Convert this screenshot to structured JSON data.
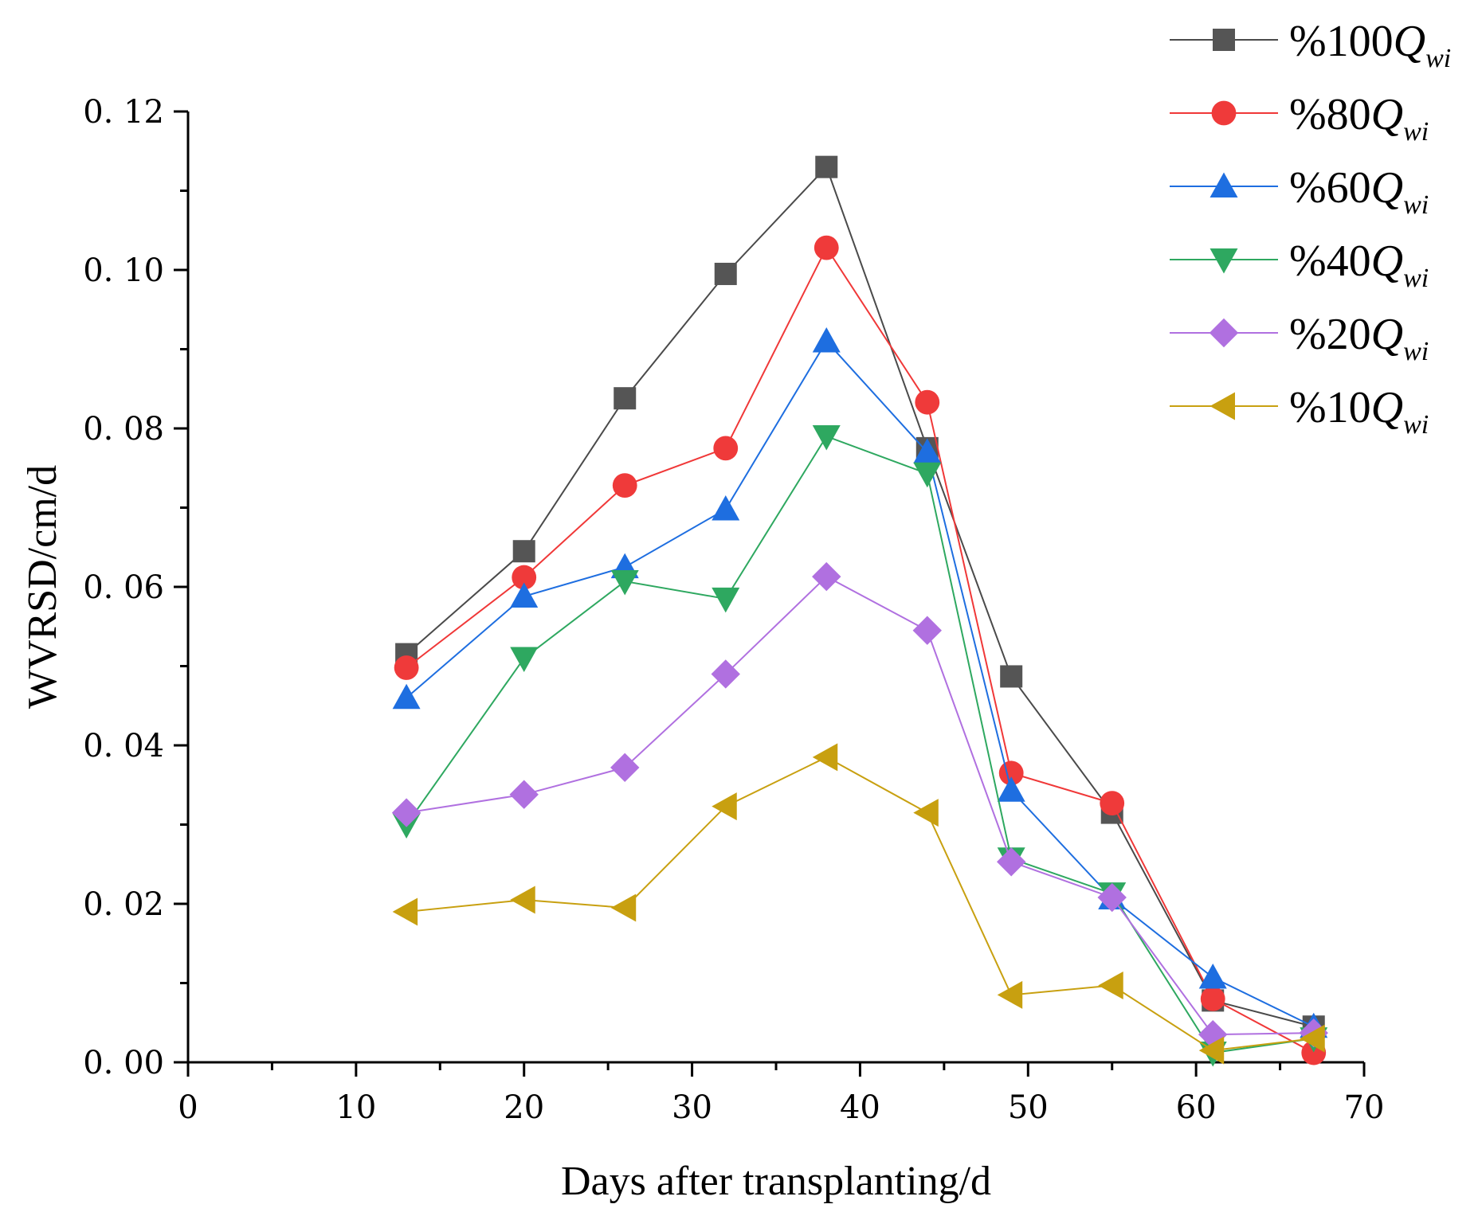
{
  "chart_data": {
    "type": "line",
    "title": "",
    "xlabel": "Days after transplanting/d",
    "ylabel": "WVRSD/cm/d",
    "xlim": [
      0,
      70
    ],
    "ylim": [
      0,
      0.12
    ],
    "x_ticks": [
      0,
      10,
      20,
      30,
      40,
      50,
      60,
      70
    ],
    "x_tick_labels": [
      "0",
      "10",
      "20",
      "30",
      "40",
      "50",
      "60",
      "70"
    ],
    "y_ticks": [
      0,
      0.02,
      0.04,
      0.06,
      0.08,
      0.1,
      0.12
    ],
    "y_tick_labels": [
      "0. 00",
      "0. 02",
      "0. 04",
      "0. 06",
      "0. 08",
      "0. 10",
      "0. 12"
    ],
    "grid": false,
    "legend_position": "top-right",
    "x": [
      13,
      20,
      26,
      32,
      38,
      44,
      49,
      55,
      61,
      67
    ],
    "series": [
      {
        "name": "%100Q_wi",
        "label_prefix": "%100",
        "label_q": "Q",
        "label_sub": "wi",
        "color": "#4a4a4a",
        "marker_fill": "#555555",
        "marker": "square",
        "values": [
          0.0515,
          0.0645,
          0.0838,
          0.0995,
          0.113,
          0.0775,
          0.0487,
          0.0315,
          0.0078,
          0.0045
        ]
      },
      {
        "name": "%80Q_wi",
        "label_prefix": "%80",
        "label_q": "Q",
        "label_sub": "wi",
        "color": "#f03838",
        "marker_fill": "#ef3a3a",
        "marker": "circle",
        "values": [
          0.0498,
          0.0612,
          0.0728,
          0.0775,
          0.1028,
          0.0833,
          0.0365,
          0.0327,
          0.008,
          0.0012
        ]
      },
      {
        "name": "%60Q_wi",
        "label_prefix": "%60",
        "label_q": "Q",
        "label_sub": "wi",
        "color": "#1e6ee0",
        "marker_fill": "#1e6ee0",
        "marker": "triangle-up",
        "values": [
          0.046,
          0.0588,
          0.0625,
          0.0698,
          0.091,
          0.077,
          0.0343,
          0.0207,
          0.0107,
          0.0045
        ]
      },
      {
        "name": "%40Q_wi",
        "label_prefix": "%40",
        "label_q": "Q",
        "label_sub": "wi",
        "color": "#2ea860",
        "marker_fill": "#2ea860",
        "marker": "triangle-down",
        "values": [
          0.03,
          0.051,
          0.0607,
          0.0585,
          0.079,
          0.0743,
          0.0257,
          0.0213,
          0.0012,
          0.003
        ]
      },
      {
        "name": "%20Q_wi",
        "label_prefix": "%20",
        "label_q": "Q",
        "label_sub": "wi",
        "color": "#b070e0",
        "marker_fill": "#b070e0",
        "marker": "diamond",
        "values": [
          0.0315,
          0.0338,
          0.0372,
          0.049,
          0.0613,
          0.0545,
          0.0253,
          0.0208,
          0.0035,
          0.0037
        ]
      },
      {
        "name": "%10Q_wi",
        "label_prefix": "%10",
        "label_q": "Q",
        "label_sub": "wi",
        "color": "#c8a010",
        "marker_fill": "#c8a010",
        "marker": "triangle-left",
        "values": [
          0.019,
          0.0205,
          0.0195,
          0.0323,
          0.0385,
          0.0315,
          0.0085,
          0.0097,
          0.0015,
          0.003
        ]
      }
    ]
  }
}
